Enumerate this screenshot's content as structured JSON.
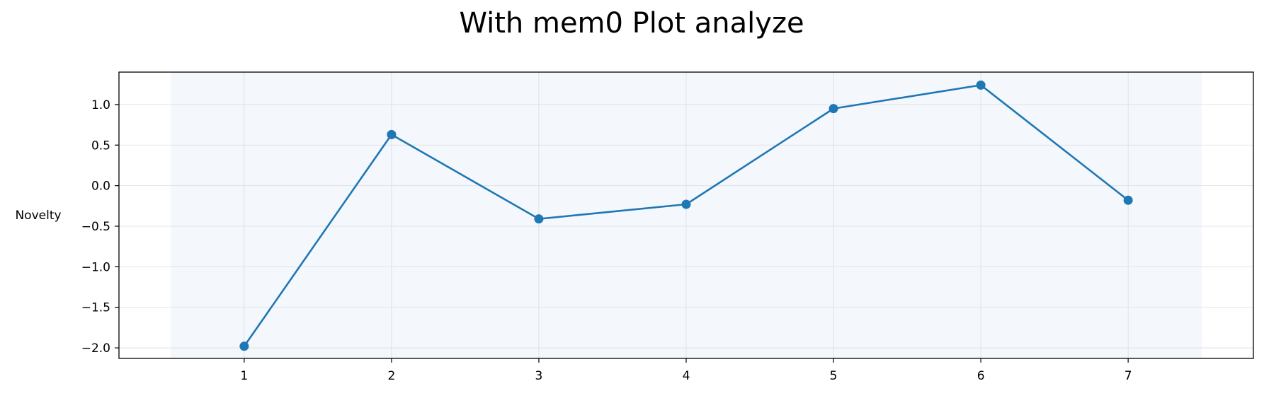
{
  "chart_data": {
    "type": "line",
    "title": "With mem0 Plot analyze",
    "xlabel": "",
    "ylabel": "Novelty",
    "x": [
      1,
      2,
      3,
      4,
      5,
      6,
      7
    ],
    "series": [
      {
        "values": [
          -1.98,
          0.63,
          -0.41,
          -0.23,
          0.95,
          1.24,
          -0.18
        ]
      }
    ],
    "xlim": [
      0.15,
      7.85
    ],
    "ylim": [
      -2.13,
      1.4
    ],
    "xticks": [
      "1",
      "2",
      "3",
      "4",
      "5",
      "6",
      "7"
    ],
    "yticks": [
      "1.0",
      "0.5",
      "0.0",
      "−0.5",
      "−1.0",
      "−1.5",
      "−2.0"
    ],
    "ytick_values": [
      1.0,
      0.5,
      0.0,
      -0.5,
      -1.0,
      -1.5,
      -2.0
    ],
    "shaded_span_x": [
      0.5,
      7.5
    ],
    "grid": true,
    "legend": "none",
    "colors": {
      "line": "#1f77b4",
      "marker": "#1f77b4",
      "span": "#f4f8fd",
      "grid": "#d9dde2",
      "axes": "#000000"
    }
  }
}
